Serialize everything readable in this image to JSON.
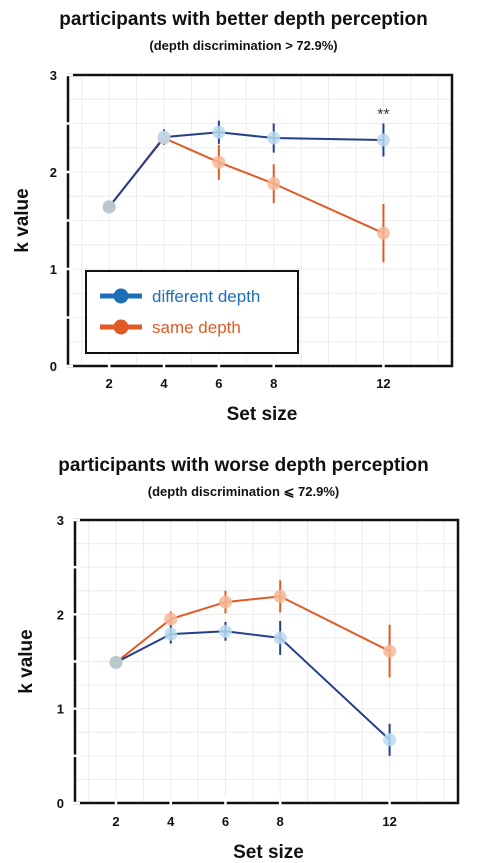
{
  "chart_data": [
    {
      "type": "line",
      "title": "participants with better depth perception",
      "subtitle": "(depth discrimination > 72.9%)",
      "xlabel": "Set size",
      "ylabel": "k value",
      "x": [
        2,
        4,
        6,
        8,
        12
      ],
      "xticks": [
        "2",
        "4",
        "6",
        "8",
        "12"
      ],
      "xlim": [
        0.5,
        14.5
      ],
      "ylim": [
        0,
        3
      ],
      "yticks": [
        "0",
        "1",
        "2",
        "3"
      ],
      "grid": true,
      "legend": {
        "placement": "bottom-left",
        "entries": [
          "different depth",
          "same depth"
        ]
      },
      "annotations": [
        {
          "text": "**",
          "x": 12
        }
      ],
      "series": [
        {
          "name": "different depth",
          "color": "#253f8a",
          "marker_color": "#b9d9ee",
          "values": [
            1.64,
            2.36,
            2.41,
            2.35,
            2.33
          ],
          "errors": [
            0,
            0.08,
            0.12,
            0.15,
            0.17
          ]
        },
        {
          "name": "same depth",
          "color": "#e05a26",
          "marker_color": "#f6b898",
          "values": [
            1.64,
            2.35,
            2.1,
            1.88,
            1.37
          ],
          "errors": [
            0,
            0.05,
            0.18,
            0.2,
            0.3
          ]
        }
      ]
    },
    {
      "type": "line",
      "title": "participants with worse depth perception",
      "subtitle": "(depth discrimination ⩽ 72.9%)",
      "xlabel": "Set size",
      "ylabel": "k value",
      "x": [
        2,
        4,
        6,
        8,
        12
      ],
      "xticks": [
        "2",
        "4",
        "6",
        "8",
        "12"
      ],
      "xlim": [
        0.5,
        14.5
      ],
      "ylim": [
        0,
        3
      ],
      "yticks": [
        "0",
        "1",
        "2",
        "3"
      ],
      "grid": true,
      "series": [
        {
          "name": "different depth",
          "color": "#253f8a",
          "marker_color": "#b9d9ee",
          "values": [
            1.49,
            1.79,
            1.82,
            1.75,
            0.67
          ],
          "errors": [
            0,
            0.1,
            0.1,
            0.18,
            0.17
          ]
        },
        {
          "name": "same depth",
          "color": "#e05a26",
          "marker_color": "#f6b898",
          "values": [
            1.49,
            1.95,
            2.13,
            2.19,
            1.61
          ],
          "errors": [
            0,
            0.08,
            0.12,
            0.17,
            0.28
          ]
        }
      ]
    }
  ]
}
